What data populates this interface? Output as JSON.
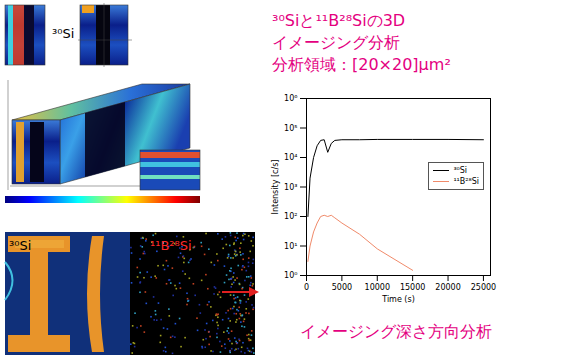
{
  "figure": {
    "title_lines": [
      "³⁰Siと¹¹B²⁸Siの3D",
      "イメージング分析",
      "分析領域：[20×20]μm²"
    ],
    "top_image_label": "³⁰Si",
    "bottom_image_labels": [
      "³⁰Si",
      "¹¹B²⁸Si"
    ],
    "caption": "イメージング深さ方向分析"
  },
  "chart_data": {
    "type": "line",
    "x_label": "Time (s)",
    "y_label": "Intensity [c/s]",
    "log": "y",
    "legend": "upper right",
    "x": [
      200,
      500,
      1000,
      1500,
      2000,
      2500,
      3000,
      3500,
      4000,
      5000,
      7500,
      10000,
      15000,
      20000,
      25000
    ],
    "series": [
      {
        "name": "³⁰Si",
        "color": "#000000",
        "values": [
          100,
          2000,
          10000,
          25000,
          38000,
          40000,
          15000,
          30000,
          38000,
          40000,
          40000,
          41000,
          41000,
          41000,
          40000
        ]
      },
      {
        "name": "¹¹B²⁸Si",
        "color": "#f08a6a",
        "values": [
          3,
          10,
          30,
          60,
          100,
          110,
          100,
          110,
          90,
          60,
          25,
          8,
          1.5,
          null,
          null
        ]
      }
    ],
    "xlim": [
      0,
      26000
    ],
    "xticks": [
      0,
      5000,
      10000,
      15000,
      20000,
      25000
    ],
    "ylim": [
      1,
      1000000
    ],
    "yticks": [
      {
        "value": 1,
        "label": "10⁰"
      },
      {
        "value": 10,
        "label": "10¹"
      },
      {
        "value": 100,
        "label": "10²"
      },
      {
        "value": 1000,
        "label": "10³"
      },
      {
        "value": 10000,
        "label": "10⁴"
      },
      {
        "value": 100000,
        "label": "10⁵"
      },
      {
        "value": 1000000,
        "label": "10⁶"
      }
    ]
  }
}
